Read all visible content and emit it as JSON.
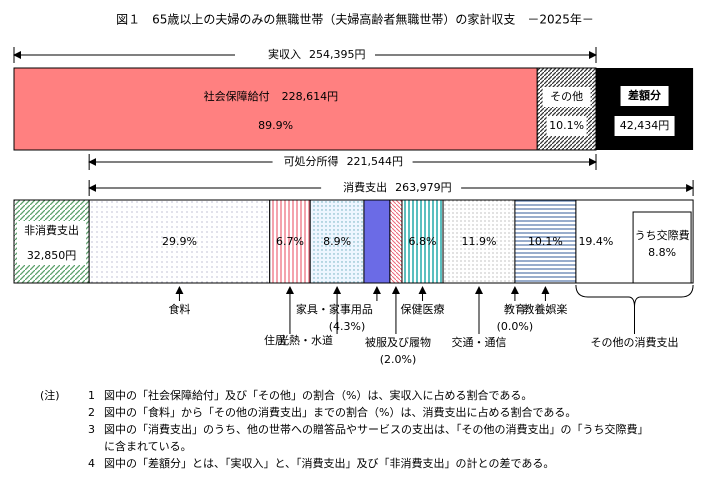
{
  "title": "図１　65歳以上の夫婦のみの無職世帯（夫婦高齢者無職世帯）の家計収支　－2025年－",
  "income": {
    "label": "実収入",
    "value": 254395,
    "value_label": "254,395円"
  },
  "income_segments": [
    {
      "label": "社会保障給付",
      "value_label": "228,614円",
      "percent": 89.9,
      "percent_label": "89.9%"
    },
    {
      "label": "その他",
      "percent": 10.1,
      "percent_label": "10.1%"
    }
  ],
  "deficit": {
    "label": "差額分",
    "value": 42434,
    "value_label": "42,434円"
  },
  "disposable": {
    "label": "可処分所得",
    "value": 221544,
    "value_label": "221,544円"
  },
  "consumption": {
    "label": "消費支出",
    "value": 263979,
    "value_label": "263,979円"
  },
  "non_consumption": {
    "label": "非消費支出",
    "value": 32850,
    "value_label": "32,850円"
  },
  "consumption_items": [
    {
      "label": "食料",
      "percent": 29.9,
      "percent_label": "29.9%"
    },
    {
      "label": "住居",
      "percent": 6.7,
      "percent_label": "6.7%"
    },
    {
      "label": "光熱・水道",
      "percent": 8.9,
      "percent_label": "8.9%"
    },
    {
      "label": "家具・家事用品",
      "percent": 4.3,
      "percent_label": "(4.3%)"
    },
    {
      "label": "被服及び履物",
      "percent": 2.0,
      "percent_label": "(2.0%)"
    },
    {
      "label": "保健医療",
      "percent": 6.8,
      "percent_label": "6.8%"
    },
    {
      "label": "交通・通信",
      "percent": 11.9,
      "percent_label": "11.9%"
    },
    {
      "label": "教育",
      "percent": 0.0,
      "percent_label": "(0.0%)"
    },
    {
      "label": "教養娯楽",
      "percent": 10.1,
      "percent_label": "10.1%"
    },
    {
      "label": "その他の消費支出",
      "percent": 19.4,
      "percent_label": "19.4%"
    }
  ],
  "consumption_sub": {
    "label": "うち交際費",
    "percent": 8.8,
    "percent_label": "8.8%"
  },
  "notes": {
    "heading": "(注)",
    "items": [
      {
        "number": "1",
        "lines": [
          "図中の「社会保障給付」及び「その他」の割合（%）は、実収入に占める割合である。"
        ]
      },
      {
        "number": "2",
        "lines": [
          "図中の「食料」から「その他の消費支出」までの割合（%）は、消費支出に占める割合である。"
        ]
      },
      {
        "number": "3",
        "lines": [
          "図中の「消費支出」のうち、他の世帯への贈答品やサービスの支出は、「その他の消費支出」の「うち交際費」",
          "に含まれている。"
        ]
      },
      {
        "number": "4",
        "lines": [
          "図中の「差額分」とは、「実収入」と、「消費支出」及び「非消費支出」の計との差である。"
        ]
      }
    ]
  }
}
